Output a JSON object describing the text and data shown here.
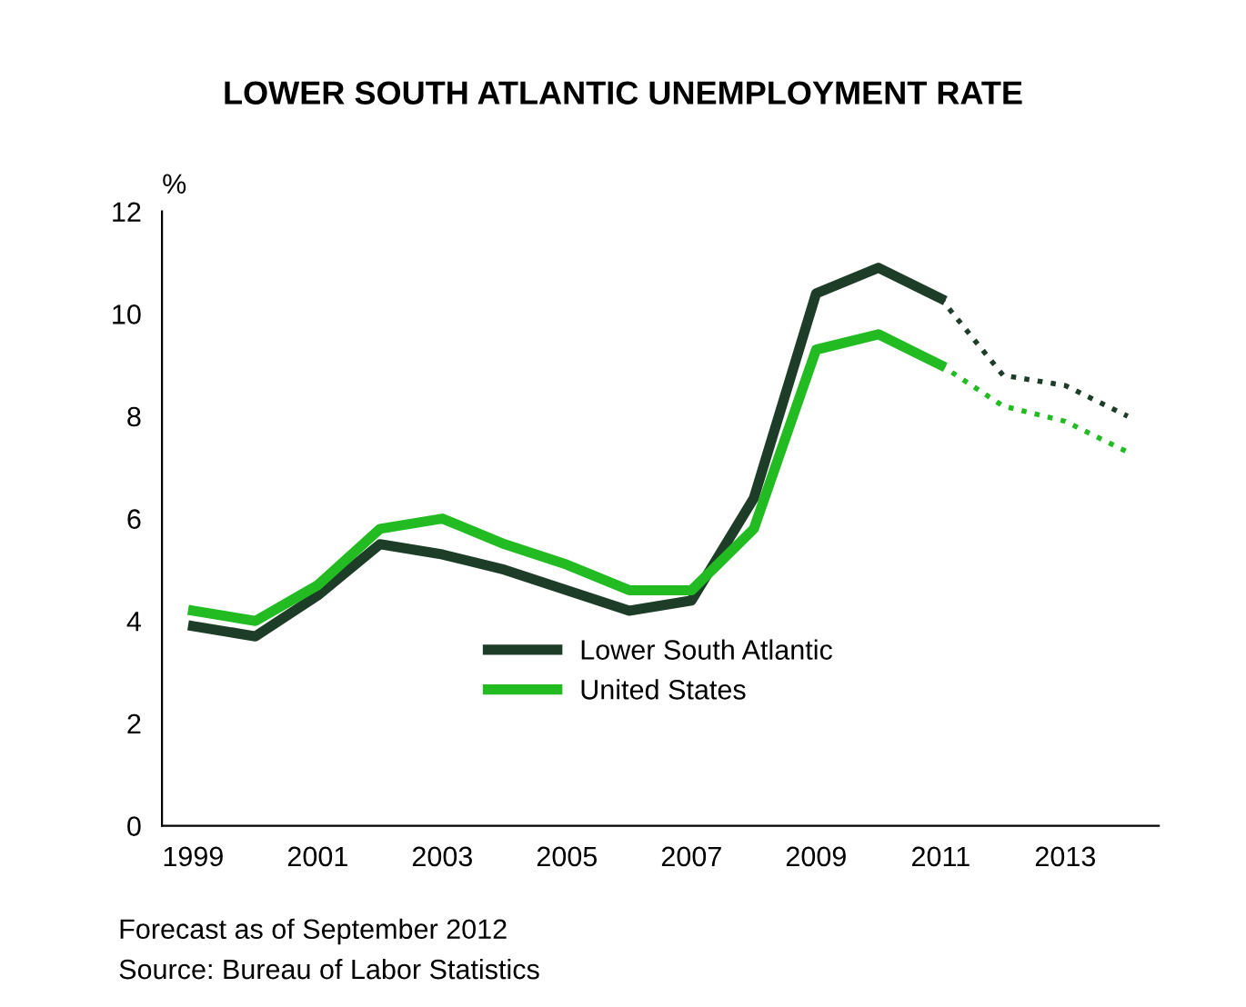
{
  "chart_data": {
    "type": "line",
    "title": "LOWER SOUTH ATLANTIC UNEMPLOYMENT RATE",
    "ylabel": "%",
    "xlim": [
      1998.5,
      2014.5
    ],
    "xticks": [
      1999,
      2001,
      2003,
      2005,
      2007,
      2009,
      2011,
      2013
    ],
    "ylim": [
      0,
      12
    ],
    "yticks": [
      0,
      2,
      4,
      6,
      8,
      10,
      12
    ],
    "grid": false,
    "legend": "center",
    "marker": "none",
    "series": [
      {
        "name": "Lower South Atlantic",
        "color": "#1e3d28",
        "line_style": "solid",
        "x": [
          1999,
          2000,
          2001,
          2002,
          2003,
          2004,
          2005,
          2006,
          2007,
          2008,
          2009,
          2010,
          2011
        ],
        "values": [
          3.9,
          3.7,
          4.5,
          5.5,
          5.3,
          5.0,
          4.6,
          4.2,
          4.4,
          6.4,
          10.4,
          10.9,
          10.3
        ]
      },
      {
        "name": "United States",
        "color": "#22bb22",
        "line_style": "solid",
        "x": [
          1999,
          2000,
          2001,
          2002,
          2003,
          2004,
          2005,
          2006,
          2007,
          2008,
          2009,
          2010,
          2011
        ],
        "values": [
          4.2,
          4.0,
          4.7,
          5.8,
          6.0,
          5.5,
          5.1,
          4.6,
          4.6,
          5.8,
          9.3,
          9.6,
          9.0
        ]
      },
      {
        "color": "#1e3d28",
        "line_style": "dotted",
        "x": [
          2011,
          2012,
          2013,
          2014
        ],
        "values": [
          10.3,
          8.8,
          8.6,
          8.0
        ]
      },
      {
        "color": "#22bb22",
        "line_style": "dotted",
        "x": [
          2011,
          2012,
          2013,
          2014
        ],
        "values": [
          9.0,
          8.2,
          7.9,
          7.3
        ]
      }
    ],
    "annotations": [
      "Forecast as of September 2012",
      "Source: Bureau of Labor Statistics"
    ]
  }
}
